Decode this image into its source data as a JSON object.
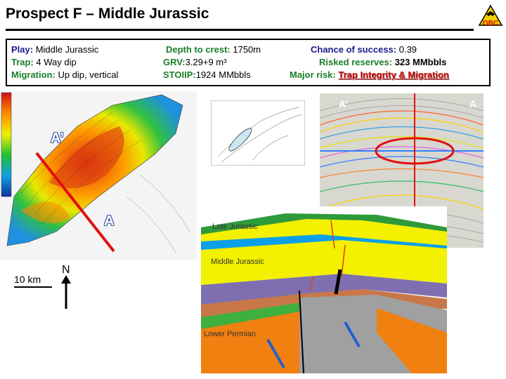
{
  "title": "Prospect F – Middle Jurassic",
  "info": {
    "play_label": "Play:",
    "play_value": "Middle Jurassic",
    "trap_label": "Trap:",
    "trap_value": "4 Way dip",
    "migration_label": "Migration:",
    "migration_value": "Up dip, vertical",
    "depth_label": "Depth to crest:",
    "depth_value": "1750m",
    "grv_label": "GRV:",
    "grv_value": "3.29+9 m³",
    "stoiip_label": "STOIIP:",
    "stoiip_value": "1924 MMbbls",
    "chance_label": "Chance of success:",
    "chance_value": "0.39",
    "reserves_label": "Risked reserves:",
    "reserves_value": "323 MMbbls",
    "risk_label": "Major risk:",
    "risk_value": "Trap Integrity & Migration"
  },
  "map": {
    "label_a_prime": "A’",
    "label_a": "A",
    "scale": "10 km",
    "north": "N"
  },
  "seismic": {
    "label_a_prime": "A’",
    "label_a": "A"
  },
  "section": {
    "late_jurassic": "Late Jurassic",
    "middle_jurassic": "Middle Jurassic",
    "lower_permian": "Lower Permian"
  },
  "colors": {
    "accent_green": "#1a7f2a",
    "accent_blue": "#1a1a8c",
    "risk_red": "#d00000"
  }
}
